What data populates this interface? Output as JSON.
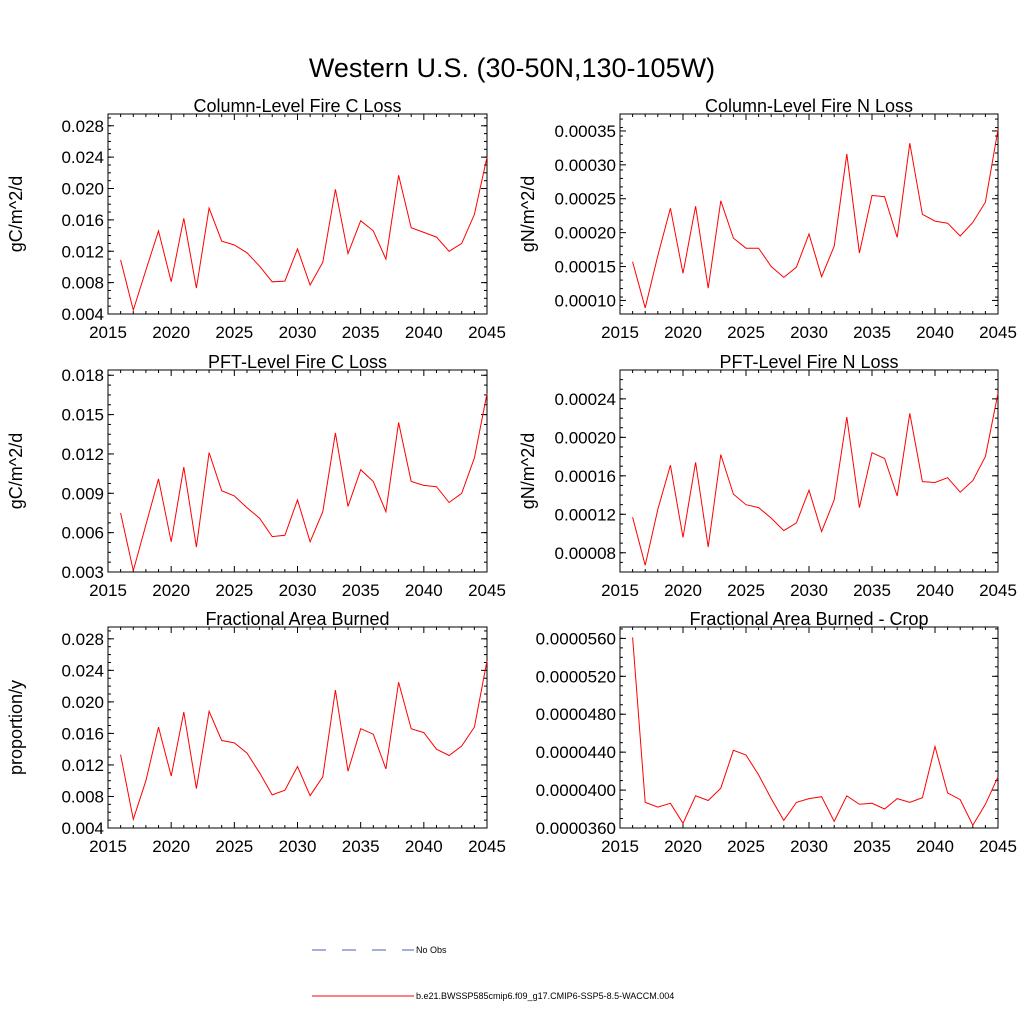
{
  "figure": {
    "title": "Western U.S. (30-50N,130-105W)"
  },
  "legend": {
    "items": [
      {
        "label": "No Obs",
        "color": "#4a5fb5",
        "style": "dashed"
      },
      {
        "label": "b.e21.BWSSP585cmip6.f09_g17.CMIP6-SSP5-8.5-WACCM.004",
        "color": "#ff0000",
        "style": "solid"
      }
    ]
  },
  "chart_data": [
    {
      "type": "line",
      "title": "Column-Level Fire C Loss",
      "ylabel": "gC/m^2/d",
      "xlim": [
        2015,
        2045
      ],
      "ylim": [
        0.004,
        0.0295
      ],
      "xticks": [
        2015,
        2020,
        2025,
        2030,
        2035,
        2040,
        2045
      ],
      "xtick_labels": [
        "2015",
        "2020",
        "2025",
        "2030",
        "2035",
        "2040",
        "2045"
      ],
      "yticks": [
        0.004,
        0.008,
        0.012,
        0.016,
        0.02,
        0.024,
        0.028
      ],
      "ytick_labels": [
        "0.004",
        "0.008",
        "0.012",
        "0.016",
        "0.020",
        "0.024",
        "0.028"
      ],
      "series": [
        {
          "color": "#ff0000",
          "x": [
            2016,
            2017,
            2018,
            2019,
            2020,
            2021,
            2022,
            2023,
            2024,
            2025,
            2026,
            2027,
            2028,
            2029,
            2030,
            2031,
            2032,
            2033,
            2034,
            2035,
            2036,
            2037,
            2038,
            2039,
            2040,
            2041,
            2042,
            2043,
            2044,
            2045
          ],
          "values": [
            0.0109,
            0.0045,
            0.0096,
            0.0146,
            0.0081,
            0.0162,
            0.0073,
            0.0175,
            0.0133,
            0.0128,
            0.0118,
            0.0101,
            0.0081,
            0.0082,
            0.0123,
            0.0077,
            0.0106,
            0.0199,
            0.0117,
            0.0159,
            0.0146,
            0.011,
            0.0217,
            0.015,
            0.0144,
            0.0138,
            0.012,
            0.013,
            0.0167,
            0.024
          ]
        }
      ]
    },
    {
      "type": "line",
      "title": "Column-Level Fire N Loss",
      "ylabel": "gN/m^2/d",
      "xlim": [
        2015,
        2045
      ],
      "ylim": [
        8e-05,
        0.000375
      ],
      "xticks": [
        2015,
        2020,
        2025,
        2030,
        2035,
        2040,
        2045
      ],
      "xtick_labels": [
        "2015",
        "2020",
        "2025",
        "2030",
        "2035",
        "2040",
        "2045"
      ],
      "yticks": [
        0.0001,
        0.00015,
        0.0002,
        0.00025,
        0.0003,
        0.00035
      ],
      "ytick_labels": [
        "0.00010",
        "0.00015",
        "0.00020",
        "0.00025",
        "0.00030",
        "0.00035"
      ],
      "series": [
        {
          "color": "#ff0000",
          "x": [
            2016,
            2017,
            2018,
            2019,
            2020,
            2021,
            2022,
            2023,
            2024,
            2025,
            2026,
            2027,
            2028,
            2029,
            2030,
            2031,
            2032,
            2033,
            2034,
            2035,
            2036,
            2037,
            2038,
            2039,
            2040,
            2041,
            2042,
            2043,
            2044,
            2045
          ],
          "values": [
            0.000157,
            8.9e-05,
            0.000166,
            0.000236,
            0.00014,
            0.000239,
            0.000118,
            0.000247,
            0.000192,
            0.000177,
            0.000177,
            0.00015,
            0.000134,
            0.000149,
            0.000198,
            0.000135,
            0.00018,
            0.000316,
            0.00017,
            0.000255,
            0.000253,
            0.000193,
            0.000332,
            0.000227,
            0.000217,
            0.000214,
            0.000195,
            0.000215,
            0.000245,
            0.000352
          ]
        }
      ]
    },
    {
      "type": "line",
      "title": "PFT-Level Fire C Loss",
      "ylabel": "gC/m^2/d",
      "xlim": [
        2015,
        2045
      ],
      "ylim": [
        0.003,
        0.0184
      ],
      "xticks": [
        2015,
        2020,
        2025,
        2030,
        2035,
        2040,
        2045
      ],
      "xtick_labels": [
        "2015",
        "2020",
        "2025",
        "2030",
        "2035",
        "2040",
        "2045"
      ],
      "yticks": [
        0.003,
        0.006,
        0.009,
        0.012,
        0.015,
        0.018
      ],
      "ytick_labels": [
        "0.003",
        "0.006",
        "0.009",
        "0.012",
        "0.015",
        "0.018"
      ],
      "series": [
        {
          "color": "#ff0000",
          "x": [
            2016,
            2017,
            2018,
            2019,
            2020,
            2021,
            2022,
            2023,
            2024,
            2025,
            2026,
            2027,
            2028,
            2029,
            2030,
            2031,
            2032,
            2033,
            2034,
            2035,
            2036,
            2037,
            2038,
            2039,
            2040,
            2041,
            2042,
            2043,
            2044,
            2045
          ],
          "values": [
            0.0075,
            0.0031,
            0.0066,
            0.0101,
            0.0053,
            0.011,
            0.0049,
            0.0121,
            0.0092,
            0.0088,
            0.0079,
            0.0071,
            0.0057,
            0.0058,
            0.0085,
            0.0053,
            0.0076,
            0.0136,
            0.008,
            0.0108,
            0.0099,
            0.0076,
            0.0144,
            0.0099,
            0.0096,
            0.0095,
            0.0083,
            0.009,
            0.0117,
            0.0166
          ]
        }
      ]
    },
    {
      "type": "line",
      "title": "PFT-Level Fire N Loss",
      "ylabel": "gN/m^2/d",
      "xlim": [
        2015,
        2045
      ],
      "ylim": [
        6e-05,
        0.00027
      ],
      "xticks": [
        2015,
        2020,
        2025,
        2030,
        2035,
        2040,
        2045
      ],
      "xtick_labels": [
        "2015",
        "2020",
        "2025",
        "2030",
        "2035",
        "2040",
        "2045"
      ],
      "yticks": [
        8e-05,
        0.00012,
        0.00016,
        0.0002,
        0.00024
      ],
      "ytick_labels": [
        "0.00008",
        "0.00012",
        "0.00016",
        "0.00020",
        "0.00024"
      ],
      "series": [
        {
          "color": "#ff0000",
          "x": [
            2016,
            2017,
            2018,
            2019,
            2020,
            2021,
            2022,
            2023,
            2024,
            2025,
            2026,
            2027,
            2028,
            2029,
            2030,
            2031,
            2032,
            2033,
            2034,
            2035,
            2036,
            2037,
            2038,
            2039,
            2040,
            2041,
            2042,
            2043,
            2044,
            2045
          ],
          "values": [
            0.000117,
            6.7e-05,
            0.000125,
            0.000171,
            9.6e-05,
            0.000174,
            8.6e-05,
            0.000182,
            0.000141,
            0.00013,
            0.000127,
            0.000116,
            0.000103,
            0.000111,
            0.000145,
            0.000102,
            0.000135,
            0.000221,
            0.000127,
            0.000184,
            0.000178,
            0.000139,
            0.000225,
            0.000154,
            0.000153,
            0.000158,
            0.000143,
            0.000155,
            0.00018,
            0.000246
          ]
        }
      ]
    },
    {
      "type": "line",
      "title": "Fractional Area Burned",
      "ylabel": "proportion/y",
      "xlim": [
        2015,
        2045
      ],
      "ylim": [
        0.004,
        0.0295
      ],
      "xticks": [
        2015,
        2020,
        2025,
        2030,
        2035,
        2040,
        2045
      ],
      "xtick_labels": [
        "2015",
        "2020",
        "2025",
        "2030",
        "2035",
        "2040",
        "2045"
      ],
      "yticks": [
        0.004,
        0.008,
        0.012,
        0.016,
        0.02,
        0.024,
        0.028
      ],
      "ytick_labels": [
        "0.004",
        "0.008",
        "0.012",
        "0.016",
        "0.020",
        "0.024",
        "0.028"
      ],
      "series": [
        {
          "color": "#ff0000",
          "x": [
            2016,
            2017,
            2018,
            2019,
            2020,
            2021,
            2022,
            2023,
            2024,
            2025,
            2026,
            2027,
            2028,
            2029,
            2030,
            2031,
            2032,
            2033,
            2034,
            2035,
            2036,
            2037,
            2038,
            2039,
            2040,
            2041,
            2042,
            2043,
            2044,
            2045
          ],
          "values": [
            0.0133,
            0.0051,
            0.01,
            0.0168,
            0.0106,
            0.0187,
            0.009,
            0.0188,
            0.0151,
            0.0148,
            0.0135,
            0.011,
            0.0082,
            0.0088,
            0.0118,
            0.0081,
            0.0105,
            0.0215,
            0.0112,
            0.0166,
            0.0159,
            0.0115,
            0.0225,
            0.0166,
            0.0161,
            0.014,
            0.0132,
            0.0144,
            0.0168,
            0.0252
          ]
        }
      ]
    },
    {
      "type": "line",
      "title": "Fractional Area Burned - Crop",
      "xlim": [
        2015,
        2045
      ],
      "ylim": [
        3.6e-05,
        5.72e-05
      ],
      "xticks": [
        2015,
        2020,
        2025,
        2030,
        2035,
        2040,
        2045
      ],
      "xtick_labels": [
        "2015",
        "2020",
        "2025",
        "2030",
        "2035",
        "2040",
        "2045"
      ],
      "yticks": [
        3.6e-05,
        4e-05,
        4.4e-05,
        4.8e-05,
        5.2e-05,
        5.6e-05
      ],
      "ytick_labels": [
        "0.0000360",
        "0.0000400",
        "0.0000440",
        "0.0000480",
        "0.0000520",
        "0.0000560"
      ],
      "series": [
        {
          "color": "#ff0000",
          "x": [
            2016,
            2017,
            2018,
            2019,
            2020,
            2021,
            2022,
            2023,
            2024,
            2025,
            2026,
            2027,
            2028,
            2029,
            2030,
            2031,
            2032,
            2033,
            2034,
            2035,
            2036,
            2037,
            2038,
            2039,
            2040,
            2041,
            2042,
            2043,
            2044,
            2045
          ],
          "values": [
            5.61e-05,
            3.87e-05,
            3.82e-05,
            3.86e-05,
            3.65e-05,
            3.94e-05,
            3.89e-05,
            4.02e-05,
            4.42e-05,
            4.37e-05,
            4.16e-05,
            3.91e-05,
            3.68e-05,
            3.87e-05,
            3.91e-05,
            3.93e-05,
            3.67e-05,
            3.94e-05,
            3.85e-05,
            3.86e-05,
            3.8e-05,
            3.91e-05,
            3.87e-05,
            3.92e-05,
            4.46e-05,
            3.97e-05,
            3.9e-05,
            3.63e-05,
            3.85e-05,
            4.14e-05
          ]
        }
      ]
    }
  ]
}
